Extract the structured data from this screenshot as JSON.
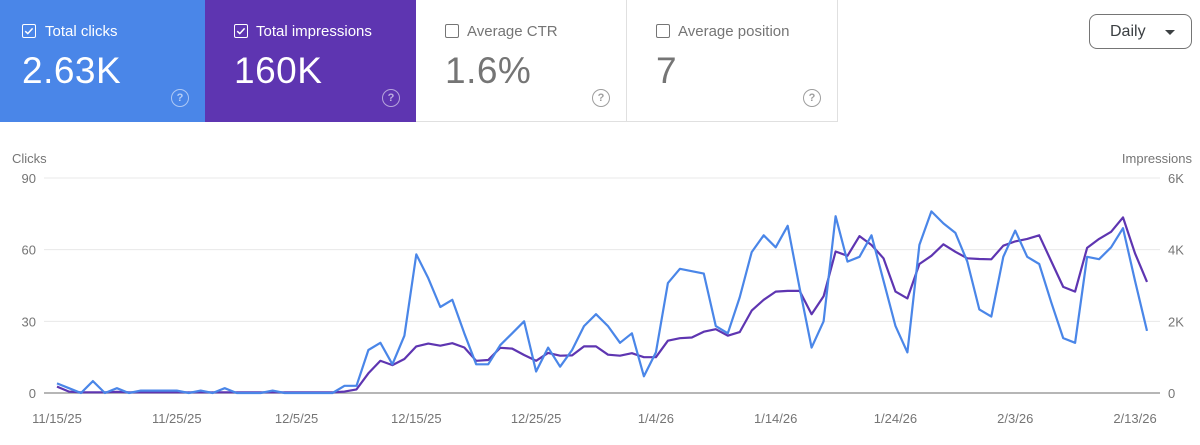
{
  "metric_cards": [
    {
      "label": "Total clicks",
      "value": "2.63K",
      "checked": true,
      "color": "#4a86e8"
    },
    {
      "label": "Total impressions",
      "value": "160K",
      "checked": true,
      "color": "#5e35b1"
    },
    {
      "label": "Average CTR",
      "value": "1.6%",
      "checked": false
    },
    {
      "label": "Average position",
      "value": "7",
      "checked": false
    }
  ],
  "help_icon": "?",
  "granularity_select": {
    "selected": "Daily"
  },
  "chart_data": {
    "type": "line",
    "left_axis_label": "Clicks",
    "right_axis_label": "Impressions",
    "left_ylim": [
      0,
      90
    ],
    "right_ylim": [
      0,
      6000
    ],
    "left_ticks": [
      "0",
      "30",
      "60",
      "90"
    ],
    "right_ticks": [
      "0",
      "2K",
      "4K",
      "6K"
    ],
    "x_tick_labels": [
      "11/15/25",
      "11/25/25",
      "12/5/25",
      "12/15/25",
      "12/25/25",
      "1/4/26",
      "1/14/26",
      "1/24/26",
      "2/3/26",
      "2/13/26"
    ],
    "grid": true,
    "series": [
      {
        "name": "Clicks",
        "axis": "left",
        "color": "#4a86e8",
        "values": [
          4,
          2,
          0,
          5,
          0,
          2,
          0,
          1,
          1,
          1,
          1,
          0,
          1,
          0,
          2,
          0,
          0,
          0,
          1,
          0,
          0,
          0,
          0,
          0,
          3,
          3,
          18,
          21,
          12,
          24,
          58,
          48,
          36,
          39,
          25,
          12,
          12,
          20,
          25,
          30,
          9,
          19,
          11,
          18,
          28,
          33,
          28,
          21,
          25,
          7,
          17,
          46,
          52,
          51,
          50,
          28,
          25,
          40,
          59,
          66,
          61,
          70,
          44,
          19,
          30,
          74,
          55,
          57,
          66,
          47,
          28,
          17,
          62,
          76,
          71,
          67,
          55,
          35,
          32,
          57,
          68,
          57,
          54,
          38,
          23,
          21,
          57,
          56,
          61,
          69,
          47,
          26
        ]
      },
      {
        "name": "Impressions",
        "axis": "right",
        "color": "#5e35b1",
        "values": [
          180,
          40,
          20,
          20,
          20,
          30,
          20,
          20,
          20,
          20,
          20,
          20,
          20,
          20,
          20,
          20,
          20,
          20,
          20,
          20,
          20,
          20,
          20,
          20,
          40,
          100,
          550,
          900,
          780,
          950,
          1300,
          1380,
          1320,
          1390,
          1270,
          900,
          920,
          1260,
          1240,
          1060,
          900,
          1120,
          1040,
          1050,
          1300,
          1300,
          1070,
          1040,
          1110,
          1000,
          1000,
          1460,
          1530,
          1550,
          1710,
          1780,
          1600,
          1700,
          2300,
          2600,
          2830,
          2850,
          2850,
          2200,
          2700,
          3950,
          3830,
          4380,
          4130,
          3760,
          2830,
          2640,
          3600,
          3830,
          4150,
          3940,
          3760,
          3740,
          3730,
          4110,
          4230,
          4300,
          4400,
          3680,
          2960,
          2830,
          4050,
          4300,
          4500,
          4900,
          3900,
          3100
        ]
      }
    ]
  }
}
